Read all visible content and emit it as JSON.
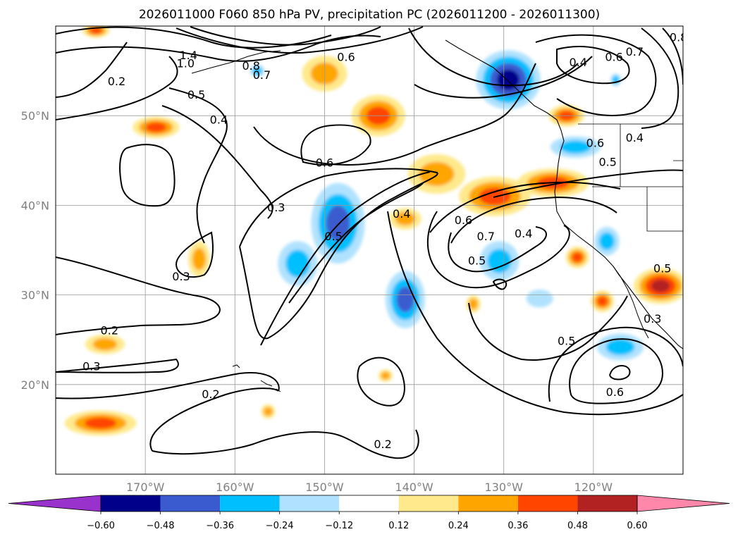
{
  "chart_data": {
    "type": "heatmap",
    "title": "2026011000 F060 850 hPa PV, precipitation PC (2026011200 - 2026011300)",
    "map": {
      "lon_range": [
        -180,
        -110
      ],
      "lat_range": [
        10,
        60
      ],
      "grid": true,
      "lon_ticks": [
        {
          "value": -170,
          "label": "170°W"
        },
        {
          "value": -160,
          "label": "160°W"
        },
        {
          "value": -150,
          "label": "150°W"
        },
        {
          "value": -140,
          "label": "140°W"
        },
        {
          "value": -130,
          "label": "130°W"
        },
        {
          "value": -120,
          "label": "120°W"
        }
      ],
      "lat_ticks": [
        {
          "value": 20,
          "label": "20°N"
        },
        {
          "value": 30,
          "label": "30°N"
        },
        {
          "value": 40,
          "label": "40°N"
        },
        {
          "value": 50,
          "label": "50°N"
        }
      ]
    },
    "colorbar": {
      "extend": "both",
      "levels": [
        -0.72,
        -0.6,
        -0.48,
        -0.36,
        -0.24,
        -0.12,
        0.12,
        0.24,
        0.36,
        0.48,
        0.6,
        0.72
      ],
      "tick_labels": [
        "−0.60",
        "−0.48",
        "−0.36",
        "−0.24",
        "−0.12",
        "0.12",
        "0.24",
        "0.36",
        "0.48",
        "0.60"
      ],
      "colors": [
        "#9932cc",
        "#00008b",
        "#3a5bcf",
        "#00bfff",
        "#b0e2ff",
        "#ffffff",
        "#ffe98c",
        "#ffa500",
        "#ff4500",
        "#b22222",
        "#ff88aa"
      ]
    },
    "pv_contour_labels": [
      {
        "text": "1.4",
        "lon": -165.2,
        "lat": 56.7
      },
      {
        "text": "1.0",
        "lon": -165.5,
        "lat": 55.8
      },
      {
        "text": "0.8",
        "lon": -158.2,
        "lat": 55.5
      },
      {
        "text": "0.7",
        "lon": -157.0,
        "lat": 54.5
      },
      {
        "text": "0.6",
        "lon": -147.6,
        "lat": 56.5
      },
      {
        "text": "0.5",
        "lon": -164.3,
        "lat": 52.3
      },
      {
        "text": "0.4",
        "lon": -161.8,
        "lat": 49.5
      },
      {
        "text": "0.2",
        "lon": -173.2,
        "lat": 53.8
      },
      {
        "text": "0.6",
        "lon": -150.0,
        "lat": 44.7
      },
      {
        "text": "0.3",
        "lon": -155.4,
        "lat": 39.7
      },
      {
        "text": "0.3",
        "lon": -166.0,
        "lat": 32.0
      },
      {
        "text": "0.5",
        "lon": -149.0,
        "lat": 36.5
      },
      {
        "text": "0.4",
        "lon": -141.4,
        "lat": 39.0
      },
      {
        "text": "0.6",
        "lon": -134.5,
        "lat": 38.3
      },
      {
        "text": "0.7",
        "lon": -132.0,
        "lat": 36.5
      },
      {
        "text": "0.5",
        "lon": -133.0,
        "lat": 33.8
      },
      {
        "text": "0.4",
        "lon": -127.8,
        "lat": 36.8
      },
      {
        "text": "0.4",
        "lon": -121.7,
        "lat": 55.9
      },
      {
        "text": "0.6",
        "lon": -117.7,
        "lat": 56.5
      },
      {
        "text": "0.7",
        "lon": -115.4,
        "lat": 57.1
      },
      {
        "text": "0.8",
        "lon": -110.5,
        "lat": 58.7
      },
      {
        "text": "0.6",
        "lon": -119.8,
        "lat": 46.9
      },
      {
        "text": "0.5",
        "lon": -118.4,
        "lat": 44.8
      },
      {
        "text": "0.4",
        "lon": -115.4,
        "lat": 47.5
      },
      {
        "text": "0.5",
        "lon": -112.3,
        "lat": 32.9
      },
      {
        "text": "0.3",
        "lon": -113.4,
        "lat": 27.3
      },
      {
        "text": "0.5",
        "lon": -123.0,
        "lat": 24.8
      },
      {
        "text": "0.6",
        "lon": -117.6,
        "lat": 19.1
      },
      {
        "text": "0.2",
        "lon": -162.7,
        "lat": 18.9
      },
      {
        "text": "0.2",
        "lon": -174.0,
        "lat": 26.0
      },
      {
        "text": "0.3",
        "lon": -176.0,
        "lat": 22.0
      },
      {
        "text": "0.2",
        "lon": -143.5,
        "lat": 13.3
      }
    ],
    "precip_pc_anomalies": [
      {
        "lon": -175.5,
        "lat": 59.5,
        "rx": 1.5,
        "ry": 0.8,
        "value": 0.4
      },
      {
        "lon": -168.8,
        "lat": 48.7,
        "rx": 2.6,
        "ry": 1.2,
        "value": 0.4
      },
      {
        "lon": -150.0,
        "lat": 54.7,
        "rx": 2.5,
        "ry": 2.0,
        "value": 0.3
      },
      {
        "lon": -144.0,
        "lat": 50.0,
        "rx": 3.0,
        "ry": 2.3,
        "value": 0.45
      },
      {
        "lon": -137.5,
        "lat": 43.5,
        "rx": 3.2,
        "ry": 2.2,
        "value": 0.35
      },
      {
        "lon": -131.0,
        "lat": 41.0,
        "rx": 4.0,
        "ry": 2.2,
        "value": 0.45
      },
      {
        "lon": -124.5,
        "lat": 42.5,
        "rx": 4.0,
        "ry": 1.6,
        "value": 0.42
      },
      {
        "lon": -123.0,
        "lat": 50.0,
        "rx": 2.0,
        "ry": 1.2,
        "value": 0.4
      },
      {
        "lon": -141.0,
        "lat": 38.5,
        "rx": 1.8,
        "ry": 1.2,
        "value": 0.33
      },
      {
        "lon": -164.0,
        "lat": 34.0,
        "rx": 1.2,
        "ry": 2.0,
        "value": 0.28
      },
      {
        "lon": -174.5,
        "lat": 24.5,
        "rx": 2.2,
        "ry": 1.1,
        "value": 0.28
      },
      {
        "lon": -175.0,
        "lat": 15.7,
        "rx": 4.0,
        "ry": 1.4,
        "value": 0.4
      },
      {
        "lon": -121.8,
        "lat": 34.2,
        "rx": 1.3,
        "ry": 1.2,
        "value": 0.4
      },
      {
        "lon": -119.0,
        "lat": 29.3,
        "rx": 1.3,
        "ry": 1.2,
        "value": 0.38
      },
      {
        "lon": -133.4,
        "lat": 29.0,
        "rx": 0.8,
        "ry": 1.0,
        "value": 0.3
      },
      {
        "lon": -112.5,
        "lat": 31.0,
        "rx": 3.0,
        "ry": 2.0,
        "value": 0.5
      },
      {
        "lon": -143.2,
        "lat": 21.0,
        "rx": 0.8,
        "ry": 0.7,
        "value": 0.28
      },
      {
        "lon": -156.3,
        "lat": 17.0,
        "rx": 0.8,
        "ry": 0.8,
        "value": 0.28
      },
      {
        "lon": -129.5,
        "lat": 54.0,
        "rx": 3.6,
        "ry": 3.3,
        "value": -0.55
      },
      {
        "lon": -148.5,
        "lat": 38.0,
        "rx": 3.0,
        "ry": 4.5,
        "value": -0.4
      },
      {
        "lon": -153.0,
        "lat": 33.5,
        "rx": 2.2,
        "ry": 2.5,
        "value": -0.3
      },
      {
        "lon": -141.0,
        "lat": 29.5,
        "rx": 2.2,
        "ry": 3.2,
        "value": -0.38
      },
      {
        "lon": -130.5,
        "lat": 33.8,
        "rx": 2.2,
        "ry": 2.2,
        "value": -0.28
      },
      {
        "lon": -122.0,
        "lat": 46.5,
        "rx": 2.8,
        "ry": 1.2,
        "value": -0.34
      },
      {
        "lon": -118.5,
        "lat": 36.0,
        "rx": 1.4,
        "ry": 1.6,
        "value": -0.34
      },
      {
        "lon": -117.0,
        "lat": 24.2,
        "rx": 2.6,
        "ry": 1.5,
        "value": -0.28
      },
      {
        "lon": -157.5,
        "lat": 55.0,
        "rx": 0.8,
        "ry": 0.7,
        "value": -0.24
      },
      {
        "lon": -126.0,
        "lat": 29.6,
        "rx": 1.5,
        "ry": 1.0,
        "value": -0.2
      },
      {
        "lon": -117.5,
        "lat": 54.0,
        "rx": 0.6,
        "ry": 0.7,
        "value": -0.24
      }
    ]
  }
}
